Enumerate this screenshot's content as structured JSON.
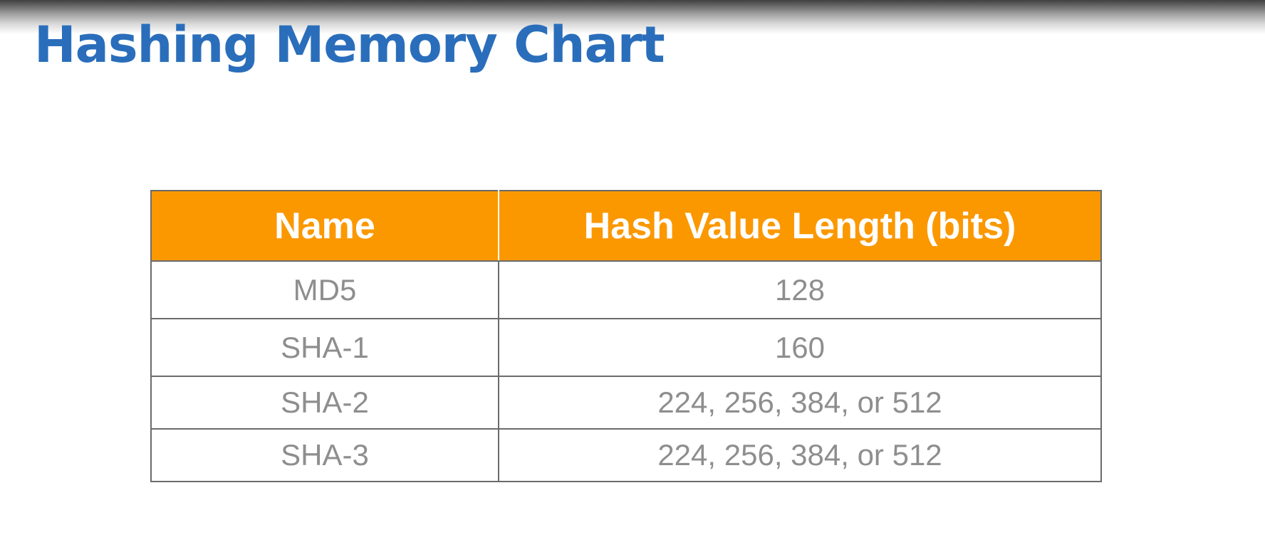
{
  "title": "Hashing Memory Chart",
  "table": {
    "headers": {
      "name": "Name",
      "length": "Hash Value Length (bits)"
    },
    "rows": [
      {
        "name": "MD5",
        "length": "128"
      },
      {
        "name": "SHA-1",
        "length": "160"
      },
      {
        "name": "SHA-2",
        "length": "224, 256, 384, or 512"
      },
      {
        "name": "SHA-3",
        "length": "224, 256, 384, or 512"
      }
    ]
  },
  "colors": {
    "title": "#2a6ebb",
    "header_background": "#fb9800",
    "header_text": "#ffffff",
    "cell_text": "#8e8e8e",
    "border": "#6b6b6b"
  }
}
